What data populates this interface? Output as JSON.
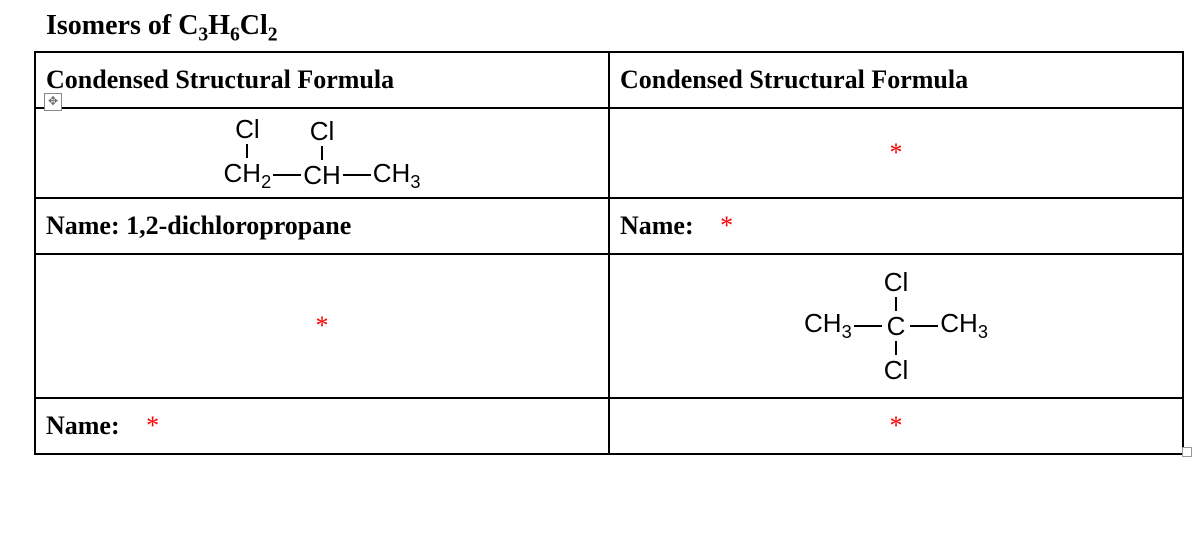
{
  "title_html": "Isomers of C<sub>3</sub>H<sub>6</sub>Cl<sub>2</sub>",
  "move_handle_glyph": "✥",
  "asterisk": "*",
  "table": {
    "header_left": "Condensed Structural Formula",
    "header_right": "Condensed Structural Formula",
    "row1": {
      "left_structure": {
        "type": "chain",
        "groups": [
          {
            "main_html": "CH<sub>2</sub>",
            "top": "Cl"
          },
          {
            "main_html": "CH",
            "top": "Cl"
          },
          {
            "main_html": "CH<sub>3</sub>"
          }
        ]
      },
      "right_is_blank_asterisk": true
    },
    "row2": {
      "left_name_label": "Name:",
      "left_name_value": "1,2-dichloropropane",
      "right_name_label": "Name:",
      "right_has_value": false
    },
    "row3": {
      "left_is_blank_asterisk": true,
      "right_structure": {
        "type": "chain",
        "groups": [
          {
            "main_html": "CH<sub>3</sub>"
          },
          {
            "main_html": "C",
            "top": "Cl",
            "bottom": "Cl"
          },
          {
            "main_html": "CH<sub>3</sub>"
          }
        ]
      }
    },
    "row4": {
      "left_name_label": "Name:",
      "left_has_value": false,
      "right_is_blank_asterisk": true
    }
  },
  "colors": {
    "asterisk": "#ff0000",
    "border": "#000000",
    "text": "#000000",
    "background": "#ffffff"
  },
  "fonts": {
    "title_family": "Times New Roman",
    "chem_family": "Arial",
    "title_size_pt": 21,
    "cell_size_pt": 20
  }
}
